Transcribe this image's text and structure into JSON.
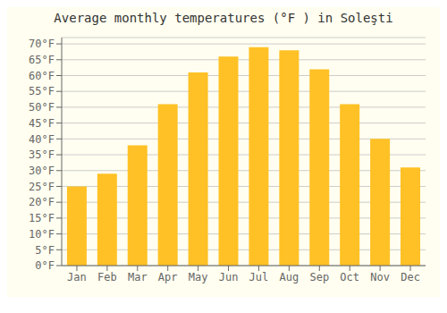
{
  "chart_data": {
    "type": "bar",
    "title": "Average monthly temperatures (°F ) in Soleşti",
    "categories": [
      "Jan",
      "Feb",
      "Mar",
      "Apr",
      "May",
      "Jun",
      "Jul",
      "Aug",
      "Sep",
      "Oct",
      "Nov",
      "Dec"
    ],
    "values": [
      25,
      29,
      38,
      51,
      61,
      66,
      69,
      68,
      62,
      51,
      40,
      31
    ],
    "color": "#FFC125",
    "ylim": [
      0,
      72
    ],
    "yticks": [
      {
        "value": 0,
        "label": "0°F"
      },
      {
        "value": 5,
        "label": "5°F"
      },
      {
        "value": 10,
        "label": "10°F"
      },
      {
        "value": 15,
        "label": "15°F"
      },
      {
        "value": 20,
        "label": "20°F"
      },
      {
        "value": 25,
        "label": "25°F"
      },
      {
        "value": 30,
        "label": "30°F"
      },
      {
        "value": 35,
        "label": "35°F"
      },
      {
        "value": 40,
        "label": "40°F"
      },
      {
        "value": 45,
        "label": "45°F"
      },
      {
        "value": 50,
        "label": "50°F"
      },
      {
        "value": 55,
        "label": "55°F"
      },
      {
        "value": 60,
        "label": "60°F"
      },
      {
        "value": 65,
        "label": "65°F"
      },
      {
        "value": 70,
        "label": "70°F"
      }
    ],
    "grid": true
  }
}
